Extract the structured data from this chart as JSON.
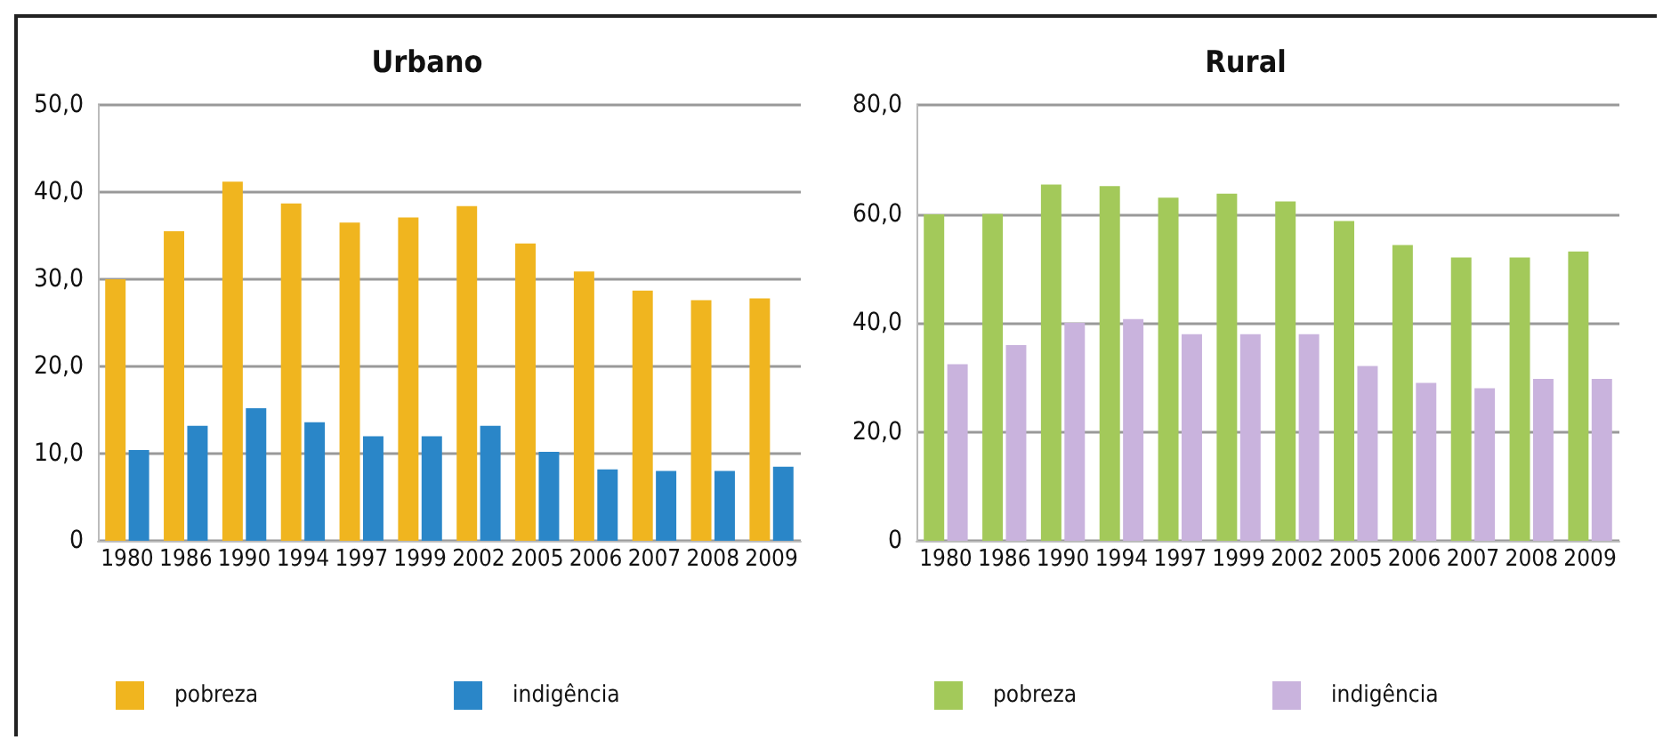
{
  "chart_data": [
    {
      "type": "bar",
      "title": "Urbano",
      "categories": [
        "1980",
        "1986",
        "1990",
        "1994",
        "1997",
        "1999",
        "2002",
        "2005",
        "2006",
        "2007",
        "2008",
        "2009"
      ],
      "series": [
        {
          "name": "pobreza",
          "color": "#f0b51f",
          "values": [
            30.0,
            35.5,
            41.2,
            38.7,
            36.5,
            37.1,
            38.4,
            34.1,
            30.9,
            28.7,
            27.6,
            27.8
          ]
        },
        {
          "name": "indigência",
          "color": "#2a86c8",
          "values": [
            10.4,
            13.2,
            15.2,
            13.6,
            12.0,
            12.0,
            13.2,
            10.2,
            8.2,
            8.0,
            8.0,
            8.5
          ]
        }
      ],
      "ylim": [
        0,
        50
      ],
      "yticks": [
        {
          "value": 0,
          "label": "0"
        },
        {
          "value": 10,
          "label": "10,0"
        },
        {
          "value": 20,
          "label": "20,0"
        },
        {
          "value": 30,
          "label": "30,0"
        },
        {
          "value": 40,
          "label": "40,0"
        },
        {
          "value": 50,
          "label": "50,0"
        }
      ],
      "grid": "y",
      "legend": "bottom"
    },
    {
      "type": "bar",
      "title": "Rural",
      "categories": [
        "1980",
        "1986",
        "1990",
        "1994",
        "1997",
        "1999",
        "2002",
        "2005",
        "2006",
        "2007",
        "2008",
        "2009"
      ],
      "series": [
        {
          "name": "pobreza",
          "color": "#a3c95a",
          "values": [
            59.9,
            60.0,
            65.4,
            65.1,
            63.0,
            63.7,
            62.3,
            58.7,
            54.3,
            52.0,
            52.0,
            53.1
          ]
        },
        {
          "name": "indigência",
          "color": "#c9b3dd",
          "values": [
            32.4,
            35.9,
            40.0,
            40.7,
            37.9,
            37.9,
            37.9,
            32.1,
            29.0,
            28.0,
            29.7,
            29.7
          ]
        }
      ],
      "ylim": [
        0,
        80
      ],
      "yticks": [
        {
          "value": 0,
          "label": "0"
        },
        {
          "value": 20,
          "label": "20,0"
        },
        {
          "value": 40,
          "label": "40,0"
        },
        {
          "value": 60,
          "label": "60,0"
        },
        {
          "value": 80,
          "label": "80,0"
        }
      ],
      "grid": "y",
      "legend": "bottom"
    }
  ]
}
